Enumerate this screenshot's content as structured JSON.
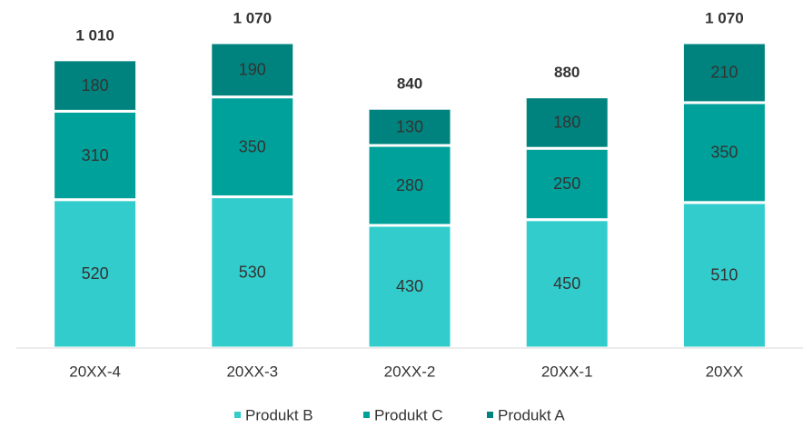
{
  "chart_data": {
    "type": "stacked_bar",
    "categories": [
      "20XX-4",
      "20XX-3",
      "20XX-2",
      "20XX-1",
      "20XX"
    ],
    "series": [
      {
        "name": "Produkt B",
        "color": "#33cccc",
        "values": [
          520,
          530,
          430,
          450,
          510
        ]
      },
      {
        "name": "Produkt C",
        "color": "#00a19a",
        "values": [
          310,
          350,
          280,
          250,
          350
        ]
      },
      {
        "name": "Produkt A",
        "color": "#00837e",
        "values": [
          180,
          190,
          130,
          180,
          210
        ]
      }
    ],
    "totals": [
      1010,
      1070,
      840,
      880,
      1070
    ],
    "total_labels": [
      "1 010",
      "1 070",
      "840",
      "880",
      "1 070"
    ],
    "ylim": [
      0,
      1070
    ],
    "legend": "bottom"
  }
}
